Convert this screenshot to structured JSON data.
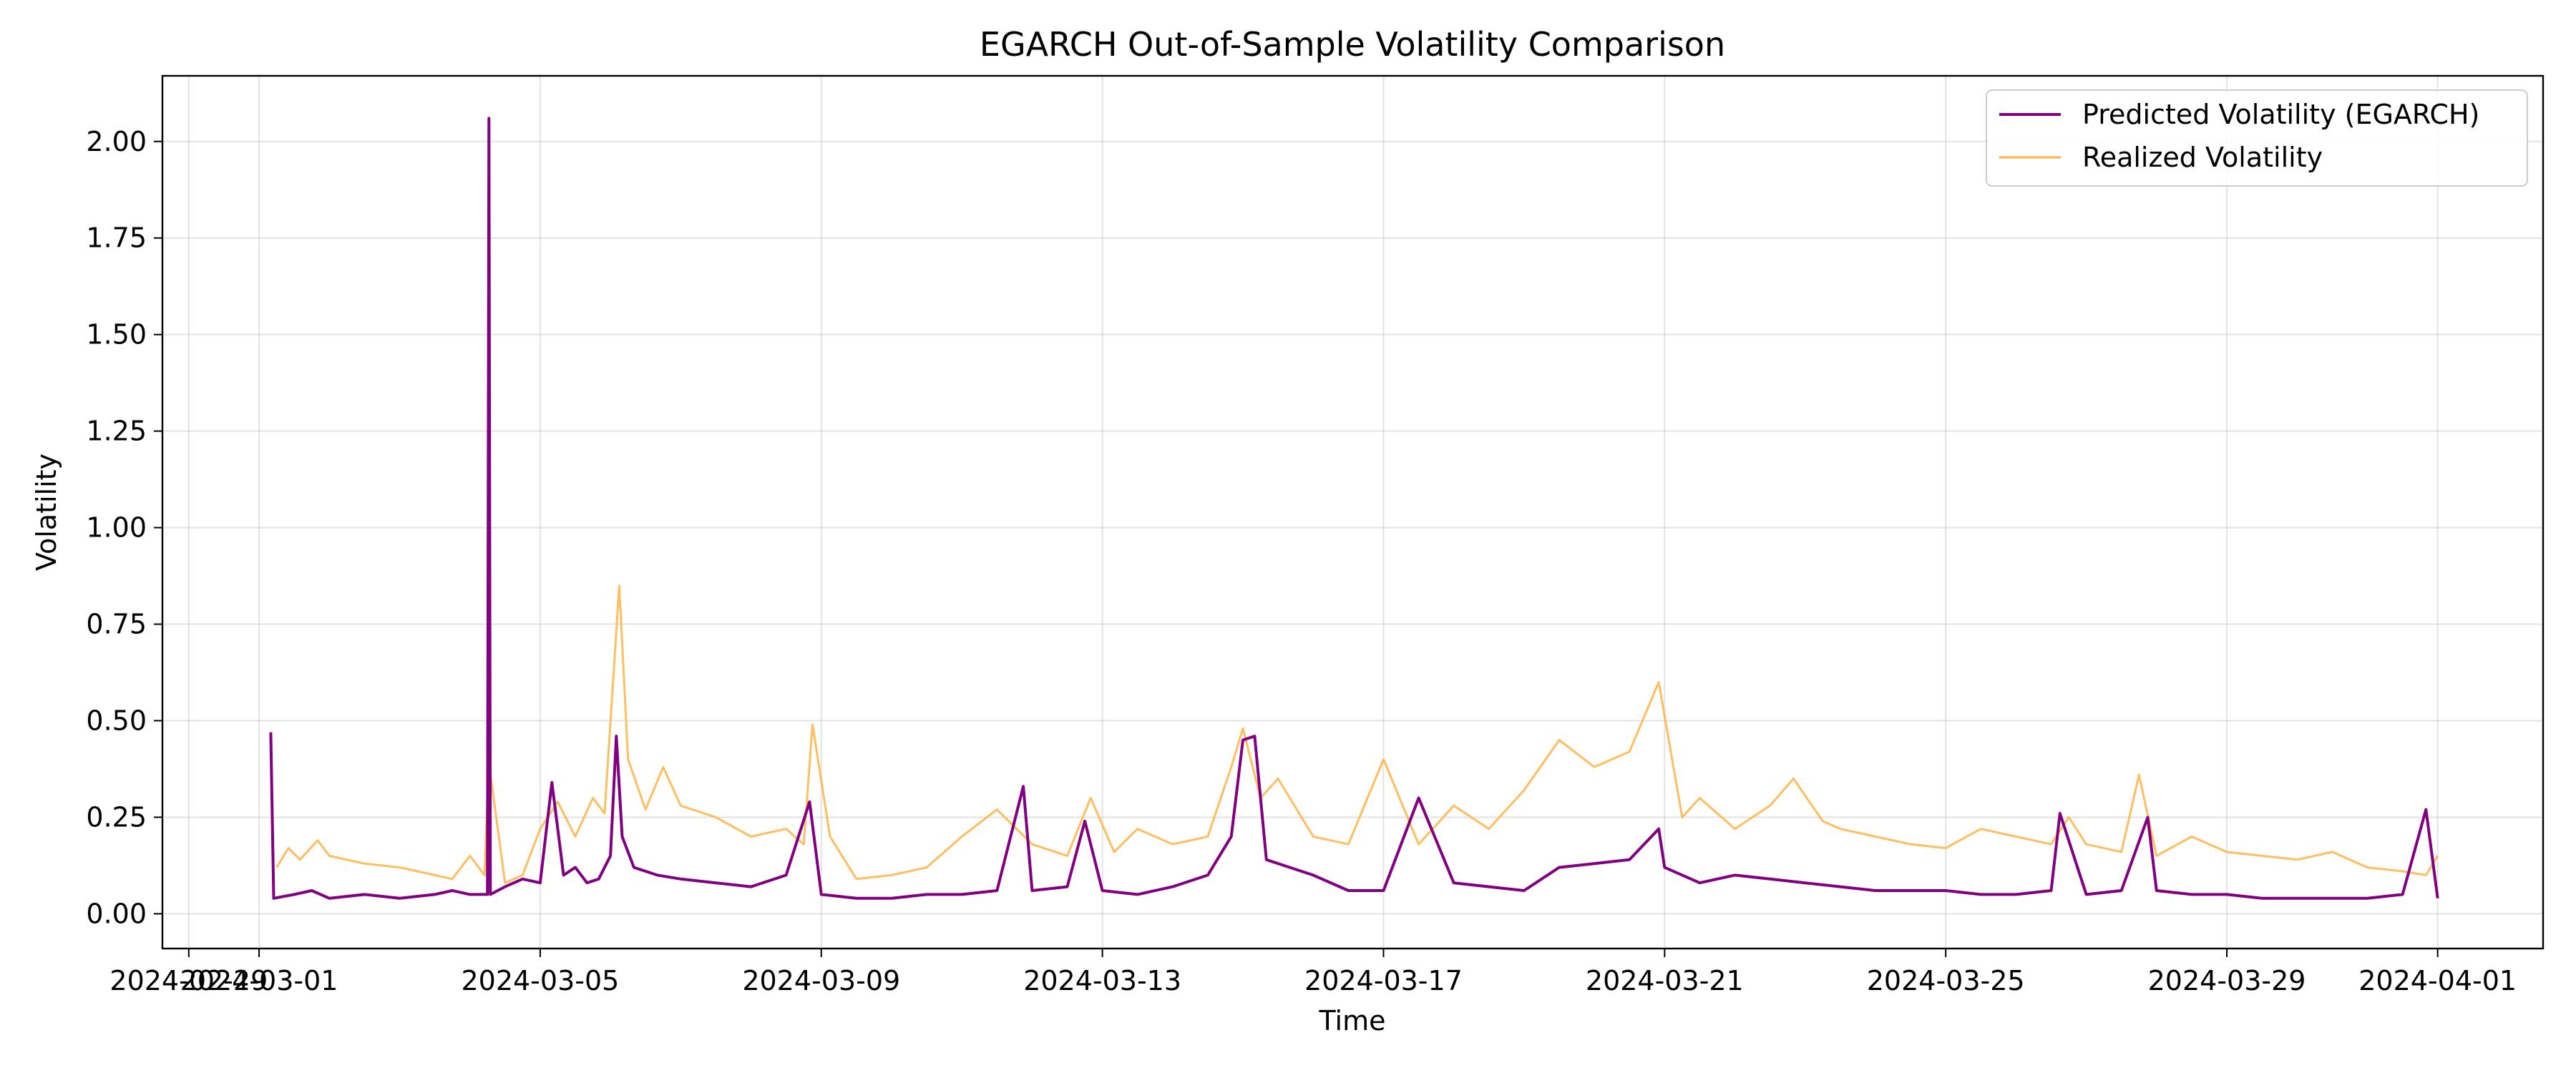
{
  "chart_data": {
    "type": "line",
    "title": "EGARCH Out-of-Sample Volatility Comparison",
    "xlabel": "Time",
    "ylabel": "Volatility",
    "xlim": [
      "2024-02-28T15:00",
      "2024-04-02T12:00"
    ],
    "ylim": [
      -0.09,
      2.17
    ],
    "y_ticks": [
      0.0,
      0.25,
      0.5,
      0.75,
      1.0,
      1.25,
      1.5,
      1.75,
      2.0
    ],
    "y_tick_labels": [
      "0.00",
      "0.25",
      "0.50",
      "0.75",
      "1.00",
      "1.25",
      "1.50",
      "1.75",
      "2.00"
    ],
    "x_ticks": [
      "2024-02-29",
      "2024-03-01",
      "2024-03-05",
      "2024-03-09",
      "2024-03-13",
      "2024-03-17",
      "2024-03-21",
      "2024-03-25",
      "2024-03-29",
      "2024-04-01"
    ],
    "x_tick_labels": [
      "2024-02-29",
      "2024-03-01",
      "2024-03-05",
      "2024-03-09",
      "2024-03-13",
      "2024-03-17",
      "2024-03-21",
      "2024-03-25",
      "2024-03-29",
      "2024-04-01"
    ],
    "grid": true,
    "legend_position": "top-right",
    "series": [
      {
        "name": "Predicted Volatility (EGARCH)",
        "color": "#800080",
        "x": [
          "2024-03-01T04:00",
          "2024-03-01T05:00",
          "2024-03-01T12:00",
          "2024-03-01T18:00",
          "2024-03-02T00:00",
          "2024-03-02T12:00",
          "2024-03-03T00:00",
          "2024-03-03T12:00",
          "2024-03-03T18:00",
          "2024-03-04T00:00",
          "2024-03-04T06:00",
          "2024-03-04T06:30",
          "2024-03-04T07:00",
          "2024-03-04T12:00",
          "2024-03-04T18:00",
          "2024-03-05T00:00",
          "2024-03-05T04:00",
          "2024-03-05T08:00",
          "2024-03-05T12:00",
          "2024-03-05T16:00",
          "2024-03-05T20:00",
          "2024-03-06T00:00",
          "2024-03-06T02:00",
          "2024-03-06T04:00",
          "2024-03-06T08:00",
          "2024-03-06T16:00",
          "2024-03-07T00:00",
          "2024-03-07T12:00",
          "2024-03-08T00:00",
          "2024-03-08T12:00",
          "2024-03-08T20:00",
          "2024-03-09T00:00",
          "2024-03-09T12:00",
          "2024-03-10T00:00",
          "2024-03-10T12:00",
          "2024-03-11T00:00",
          "2024-03-11T12:00",
          "2024-03-11T21:00",
          "2024-03-12T00:00",
          "2024-03-12T12:00",
          "2024-03-12T18:00",
          "2024-03-13T00:00",
          "2024-03-13T12:00",
          "2024-03-14T00:00",
          "2024-03-14T12:00",
          "2024-03-14T20:00",
          "2024-03-15T00:00",
          "2024-03-15T04:00",
          "2024-03-15T08:00",
          "2024-03-15T16:00",
          "2024-03-16T00:00",
          "2024-03-16T12:00",
          "2024-03-17T00:00",
          "2024-03-17T12:00",
          "2024-03-18T00:00",
          "2024-03-18T12:00",
          "2024-03-19T00:00",
          "2024-03-19T12:00",
          "2024-03-20T00:00",
          "2024-03-20T12:00",
          "2024-03-20T22:00",
          "2024-03-21T00:00",
          "2024-03-21T12:00",
          "2024-03-22T00:00",
          "2024-03-22T12:00",
          "2024-03-23T00:00",
          "2024-03-23T12:00",
          "2024-03-24T00:00",
          "2024-03-24T12:00",
          "2024-03-25T00:00",
          "2024-03-25T12:00",
          "2024-03-26T00:00",
          "2024-03-26T12:00",
          "2024-03-26T15:00",
          "2024-03-27T00:00",
          "2024-03-27T12:00",
          "2024-03-27T21:00",
          "2024-03-28T00:00",
          "2024-03-28T12:00",
          "2024-03-29T00:00",
          "2024-03-29T12:00",
          "2024-03-30T00:00",
          "2024-03-30T12:00",
          "2024-03-31T00:00",
          "2024-03-31T12:00",
          "2024-03-31T20:00",
          "2024-04-01T00:00"
        ],
        "y": [
          0.47,
          0.04,
          0.05,
          0.06,
          0.04,
          0.05,
          0.04,
          0.05,
          0.06,
          0.05,
          0.05,
          2.06,
          0.05,
          0.07,
          0.09,
          0.08,
          0.34,
          0.1,
          0.12,
          0.08,
          0.09,
          0.15,
          0.46,
          0.2,
          0.12,
          0.1,
          0.09,
          0.08,
          0.07,
          0.1,
          0.29,
          0.05,
          0.04,
          0.04,
          0.05,
          0.05,
          0.06,
          0.33,
          0.06,
          0.07,
          0.24,
          0.06,
          0.05,
          0.07,
          0.1,
          0.2,
          0.45,
          0.46,
          0.14,
          0.12,
          0.1,
          0.06,
          0.06,
          0.3,
          0.08,
          0.07,
          0.06,
          0.12,
          0.13,
          0.14,
          0.22,
          0.12,
          0.08,
          0.1,
          0.09,
          0.08,
          0.07,
          0.06,
          0.06,
          0.06,
          0.05,
          0.05,
          0.06,
          0.26,
          0.05,
          0.06,
          0.25,
          0.06,
          0.05,
          0.05,
          0.04,
          0.04,
          0.04,
          0.04,
          0.05,
          0.27,
          0.04
        ]
      },
      {
        "name": "Realized Volatility",
        "color": "#ffb347",
        "x": [
          "2024-03-01T06:00",
          "2024-03-01T10:00",
          "2024-03-01T14:00",
          "2024-03-01T20:00",
          "2024-03-02T00:00",
          "2024-03-02T12:00",
          "2024-03-03T00:00",
          "2024-03-03T12:00",
          "2024-03-03T18:00",
          "2024-03-04T00:00",
          "2024-03-04T05:00",
          "2024-03-04T06:30",
          "2024-03-04T12:00",
          "2024-03-04T18:00",
          "2024-03-05T00:00",
          "2024-03-05T06:00",
          "2024-03-05T12:00",
          "2024-03-05T18:00",
          "2024-03-05T22:00",
          "2024-03-06T03:00",
          "2024-03-06T06:00",
          "2024-03-06T12:00",
          "2024-03-06T18:00",
          "2024-03-07T00:00",
          "2024-03-07T12:00",
          "2024-03-08T00:00",
          "2024-03-08T12:00",
          "2024-03-08T18:00",
          "2024-03-08T21:00",
          "2024-03-09T03:00",
          "2024-03-09T12:00",
          "2024-03-10T00:00",
          "2024-03-10T12:00",
          "2024-03-11T00:00",
          "2024-03-11T12:00",
          "2024-03-12T00:00",
          "2024-03-12T12:00",
          "2024-03-12T20:00",
          "2024-03-13T04:00",
          "2024-03-13T12:00",
          "2024-03-14T00:00",
          "2024-03-14T12:00",
          "2024-03-14T20:00",
          "2024-03-15T00:00",
          "2024-03-15T06:00",
          "2024-03-15T12:00",
          "2024-03-16T00:00",
          "2024-03-16T12:00",
          "2024-03-17T00:00",
          "2024-03-17T12:00",
          "2024-03-18T00:00",
          "2024-03-18T12:00",
          "2024-03-19T00:00",
          "2024-03-19T12:00",
          "2024-03-20T00:00",
          "2024-03-20T12:00",
          "2024-03-20T22:00",
          "2024-03-21T06:00",
          "2024-03-21T12:00",
          "2024-03-22T00:00",
          "2024-03-22T12:00",
          "2024-03-22T20:00",
          "2024-03-23T06:00",
          "2024-03-23T12:00",
          "2024-03-24T00:00",
          "2024-03-24T12:00",
          "2024-03-25T00:00",
          "2024-03-25T12:00",
          "2024-03-26T00:00",
          "2024-03-26T12:00",
          "2024-03-26T18:00",
          "2024-03-27T00:00",
          "2024-03-27T12:00",
          "2024-03-27T18:00",
          "2024-03-28T00:00",
          "2024-03-28T12:00",
          "2024-03-29T00:00",
          "2024-03-29T12:00",
          "2024-03-30T00:00",
          "2024-03-30T12:00",
          "2024-03-31T00:00",
          "2024-03-31T12:00",
          "2024-03-31T20:00",
          "2024-04-01T00:00"
        ],
        "y": [
          0.12,
          0.17,
          0.14,
          0.19,
          0.15,
          0.13,
          0.12,
          0.1,
          0.09,
          0.15,
          0.1,
          0.39,
          0.08,
          0.1,
          0.22,
          0.29,
          0.2,
          0.3,
          0.26,
          0.85,
          0.4,
          0.27,
          0.38,
          0.28,
          0.25,
          0.2,
          0.22,
          0.18,
          0.49,
          0.2,
          0.09,
          0.1,
          0.12,
          0.2,
          0.27,
          0.18,
          0.15,
          0.3,
          0.16,
          0.22,
          0.18,
          0.2,
          0.38,
          0.48,
          0.3,
          0.35,
          0.2,
          0.18,
          0.4,
          0.18,
          0.28,
          0.22,
          0.32,
          0.45,
          0.38,
          0.42,
          0.6,
          0.25,
          0.3,
          0.22,
          0.28,
          0.35,
          0.24,
          0.22,
          0.2,
          0.18,
          0.17,
          0.22,
          0.2,
          0.18,
          0.25,
          0.18,
          0.16,
          0.36,
          0.15,
          0.2,
          0.16,
          0.15,
          0.14,
          0.16,
          0.12,
          0.11,
          0.1,
          0.15
        ]
      }
    ]
  }
}
